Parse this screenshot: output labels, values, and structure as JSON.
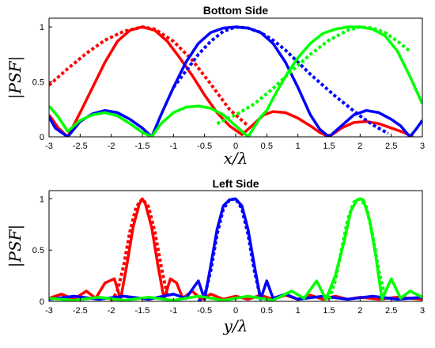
{
  "chart_data": [
    {
      "type": "line",
      "title": "Bottom Side",
      "xlabel": "x/λ",
      "ylabel": "|PSF|",
      "xlim": [
        -3,
        3
      ],
      "ylim": [
        0,
        1.08
      ],
      "x_ticks": [
        -3,
        -2.5,
        -2,
        -1.5,
        -1,
        -0.5,
        0,
        0.5,
        1,
        1.5,
        2,
        2.5,
        3
      ],
      "y_ticks": [
        0,
        0.5,
        1
      ],
      "series": [
        {
          "color": "#ff0000",
          "style": "solid",
          "x": [
            -3,
            -2.85,
            -2.7,
            -2.5,
            -2.3,
            -2.1,
            -1.9,
            -1.7,
            -1.5,
            -1.3,
            -1.1,
            -0.9,
            -0.7,
            -0.5,
            -0.3,
            -0.1,
            0.1,
            0.3,
            0.45,
            0.6,
            0.8,
            1.0,
            1.2,
            1.35,
            1.5,
            1.7,
            1.9,
            2.1,
            2.3,
            2.5,
            2.7,
            2.85
          ],
          "y": [
            0.2,
            0.08,
            0.0,
            0.22,
            0.45,
            0.68,
            0.87,
            0.97,
            1.0,
            0.97,
            0.87,
            0.72,
            0.56,
            0.38,
            0.22,
            0.1,
            0.02,
            0.12,
            0.2,
            0.23,
            0.22,
            0.17,
            0.1,
            0.04,
            0.0,
            0.08,
            0.13,
            0.14,
            0.12,
            0.08,
            0.04,
            0.0
          ]
        },
        {
          "color": "#ff0000",
          "style": "dotted",
          "x": [
            -3,
            -2.7,
            -2.4,
            -2.1,
            -1.8,
            -1.5,
            -1.3,
            -1.0,
            -0.7,
            -0.4,
            -0.1,
            0.2
          ],
          "y": [
            0.47,
            0.62,
            0.76,
            0.88,
            0.96,
            1.0,
            0.98,
            0.87,
            0.7,
            0.48,
            0.25,
            0.1
          ]
        },
        {
          "color": "#0000ff",
          "style": "solid",
          "x": [
            -3,
            -2.9,
            -2.7,
            -2.5,
            -2.3,
            -2.1,
            -1.9,
            -1.7,
            -1.5,
            -1.35,
            -1.2,
            -1.0,
            -0.8,
            -0.6,
            -0.4,
            -0.2,
            0,
            0.2,
            0.4,
            0.6,
            0.8,
            1.0,
            1.2,
            1.35,
            1.5,
            1.7,
            1.9,
            2.1,
            2.3,
            2.5,
            2.65,
            2.8,
            2.9,
            3.0
          ],
          "y": [
            0.18,
            0.08,
            0.0,
            0.14,
            0.21,
            0.24,
            0.22,
            0.16,
            0.08,
            0.0,
            0.2,
            0.45,
            0.68,
            0.85,
            0.95,
            0.99,
            1.0,
            0.99,
            0.95,
            0.85,
            0.68,
            0.45,
            0.2,
            0.07,
            0.0,
            0.1,
            0.2,
            0.24,
            0.22,
            0.16,
            0.1,
            0.0,
            0.07,
            0.15
          ]
        },
        {
          "color": "#0000ff",
          "style": "dotted",
          "x": [
            -1.0,
            -0.8,
            -0.6,
            -0.4,
            -0.2,
            0,
            0.2,
            0.4,
            0.6,
            0.8,
            1.0,
            1.2,
            1.4,
            1.6,
            1.8,
            2.0,
            2.2,
            2.45
          ],
          "y": [
            0.45,
            0.6,
            0.75,
            0.87,
            0.96,
            1.0,
            0.99,
            0.95,
            0.88,
            0.79,
            0.68,
            0.57,
            0.47,
            0.37,
            0.28,
            0.19,
            0.11,
            0.03
          ]
        },
        {
          "color": "#00ff00",
          "style": "solid",
          "x": [
            -3,
            -2.85,
            -2.7,
            -2.5,
            -2.3,
            -2.1,
            -1.9,
            -1.7,
            -1.5,
            -1.35,
            -1.2,
            -1.0,
            -0.8,
            -0.6,
            -0.4,
            -0.2,
            0,
            0.2,
            0.4,
            0.5,
            0.6,
            0.8,
            1.0,
            1.2,
            1.4,
            1.6,
            1.8,
            2.0,
            2.2,
            2.4,
            2.6,
            2.8,
            3.0
          ],
          "y": [
            0.28,
            0.18,
            0.05,
            0.15,
            0.2,
            0.22,
            0.19,
            0.12,
            0.04,
            0.0,
            0.12,
            0.22,
            0.27,
            0.28,
            0.26,
            0.2,
            0.1,
            0.0,
            0.18,
            0.24,
            0.35,
            0.55,
            0.72,
            0.85,
            0.94,
            0.98,
            1.0,
            1.0,
            0.98,
            0.92,
            0.78,
            0.55,
            0.3
          ]
        },
        {
          "color": "#00ff00",
          "style": "dotted",
          "x": [
            -0.3,
            0,
            0.3,
            0.6,
            0.9,
            1.2,
            1.5,
            1.8,
            2.0,
            2.2,
            2.4,
            2.6,
            2.8
          ],
          "y": [
            0.12,
            0.2,
            0.3,
            0.44,
            0.6,
            0.75,
            0.88,
            0.97,
            1.0,
            0.99,
            0.95,
            0.87,
            0.78
          ]
        }
      ]
    },
    {
      "type": "line",
      "title": "Left Side",
      "xlabel": "y/λ",
      "ylabel": "|PSF|",
      "xlim": [
        -3,
        3
      ],
      "ylim": [
        0,
        1.08
      ],
      "x_ticks": [
        -3,
        -2.5,
        -2,
        -1.5,
        -1,
        -0.5,
        0,
        0.5,
        1,
        1.5,
        2,
        2.5,
        3
      ],
      "y_ticks": [
        0,
        0.5,
        1
      ],
      "series": [
        {
          "color": "#ff0000",
          "style": "solid",
          "x": [
            -3,
            -2.8,
            -2.6,
            -2.4,
            -2.25,
            -2.1,
            -1.95,
            -1.85,
            -1.75,
            -1.65,
            -1.55,
            -1.5,
            -1.45,
            -1.35,
            -1.25,
            -1.15,
            -1.05,
            -0.95,
            -0.85,
            -0.7,
            -0.55,
            -0.4,
            -0.2,
            0,
            0.2,
            0.4,
            0.6,
            0.8,
            1.0,
            1.2,
            1.4,
            1.6,
            1.8,
            2.0,
            2.3,
            2.6,
            3.0
          ],
          "y": [
            0.03,
            0.07,
            0.02,
            0.1,
            0.03,
            0.18,
            0.22,
            0.02,
            0.35,
            0.72,
            0.95,
            1.0,
            0.95,
            0.72,
            0.35,
            0.02,
            0.22,
            0.18,
            0.03,
            0.1,
            0.02,
            0.07,
            0.02,
            0.05,
            0.02,
            0.06,
            0.02,
            0.06,
            0.02,
            0.06,
            0.02,
            0.05,
            0.02,
            0.04,
            0.02,
            0.04,
            0.02
          ]
        },
        {
          "color": "#ff0000",
          "style": "dotted",
          "x": [
            -2.0,
            -1.9,
            -1.8,
            -1.7,
            -1.6,
            -1.5,
            -1.4,
            -1.3,
            -1.2,
            -1.1
          ],
          "y": [
            0.0,
            0.1,
            0.35,
            0.68,
            0.92,
            1.0,
            0.92,
            0.68,
            0.35,
            0.05
          ]
        },
        {
          "color": "#0000ff",
          "style": "solid",
          "x": [
            -3,
            -2.6,
            -2.2,
            -1.8,
            -1.4,
            -1.0,
            -0.8,
            -0.6,
            -0.5,
            -0.4,
            -0.3,
            -0.2,
            -0.1,
            0,
            0.1,
            0.2,
            0.3,
            0.4,
            0.5,
            0.6,
            0.8,
            1.0,
            1.4,
            1.8,
            2.2,
            2.6,
            3.0
          ],
          "y": [
            0.02,
            0.05,
            0.02,
            0.05,
            0.02,
            0.07,
            0.03,
            0.2,
            0.02,
            0.35,
            0.7,
            0.93,
            0.99,
            1.0,
            0.93,
            0.7,
            0.35,
            0.02,
            0.2,
            0.03,
            0.07,
            0.02,
            0.05,
            0.02,
            0.05,
            0.02,
            0.04
          ]
        },
        {
          "color": "#0000ff",
          "style": "dotted",
          "x": [
            -0.6,
            -0.5,
            -0.4,
            -0.3,
            -0.2,
            -0.1,
            0,
            0.1,
            0.2,
            0.3,
            0.4
          ],
          "y": [
            0.0,
            0.05,
            0.3,
            0.65,
            0.9,
            0.99,
            1.0,
            0.9,
            0.65,
            0.3,
            0.03
          ]
        },
        {
          "color": "#00ff00",
          "style": "solid",
          "x": [
            -3,
            -2.6,
            -2.2,
            -1.8,
            -1.4,
            -1.0,
            -0.6,
            -0.2,
            0.2,
            0.6,
            0.9,
            1.1,
            1.3,
            1.45,
            1.6,
            1.75,
            1.85,
            1.95,
            2.0,
            2.05,
            2.15,
            2.25,
            2.35,
            2.5,
            2.65,
            2.8,
            3.0
          ],
          "y": [
            0.03,
            0.01,
            0.04,
            0.01,
            0.04,
            0.01,
            0.05,
            0.01,
            0.05,
            0.01,
            0.1,
            0.03,
            0.2,
            0.02,
            0.25,
            0.6,
            0.88,
            0.99,
            1.0,
            0.99,
            0.8,
            0.45,
            0.02,
            0.22,
            0.03,
            0.1,
            0.04
          ]
        },
        {
          "color": "#00ff00",
          "style": "dotted",
          "x": [
            1.5,
            1.6,
            1.7,
            1.8,
            1.9,
            2.0,
            2.1,
            2.2,
            2.3,
            2.4
          ],
          "y": [
            0.02,
            0.2,
            0.5,
            0.8,
            0.97,
            1.0,
            0.92,
            0.65,
            0.3,
            0.05
          ]
        }
      ]
    }
  ]
}
